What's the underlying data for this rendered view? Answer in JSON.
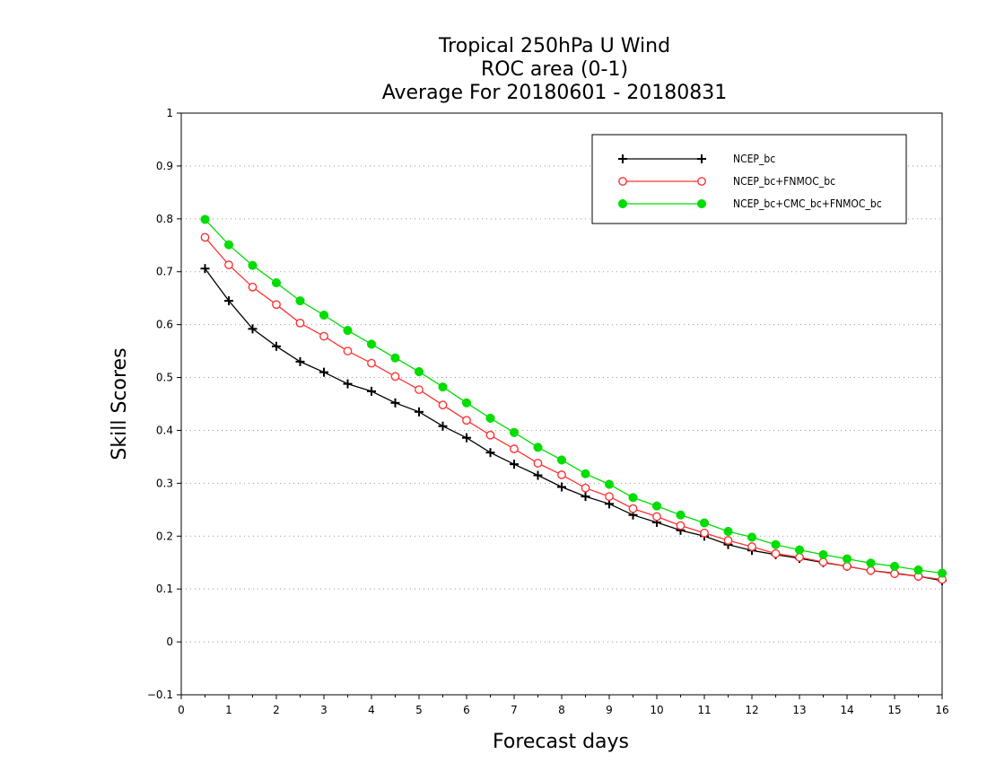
{
  "chart_data": {
    "type": "line",
    "title": [
      "Tropical 250hPa U Wind",
      "ROC area (0-1)",
      "Average For 20180601 - 20180831"
    ],
    "xlabel": "Forecast days",
    "ylabel": "Skill Scores",
    "xlim": [
      0,
      16
    ],
    "ylim": [
      -0.1,
      1
    ],
    "xticks": [
      "0",
      "1",
      "2",
      "3",
      "4",
      "5",
      "6",
      "7",
      "8",
      "9",
      "10",
      "11",
      "12",
      "13",
      "14",
      "15",
      "16"
    ],
    "yticks": [
      "−0.1",
      "0",
      "0.1",
      "0.2",
      "0.3",
      "0.4",
      "0.5",
      "0.6",
      "0.7",
      "0.8",
      "0.9",
      "1"
    ],
    "grid": "horizontal dotted",
    "legend_position": "top-right",
    "x": [
      0.5,
      1,
      1.5,
      2,
      2.5,
      3,
      3.5,
      4,
      4.5,
      5,
      5.5,
      6,
      6.5,
      7,
      7.5,
      8,
      8.5,
      9,
      9.5,
      10,
      10.5,
      11,
      11.5,
      12,
      12.5,
      13,
      13.5,
      14,
      14.5,
      15,
      15.5,
      16
    ],
    "series": [
      {
        "name": "NCEP_bc",
        "color": "#000000",
        "marker": "plus",
        "values": [
          0.706,
          0.645,
          0.592,
          0.559,
          0.53,
          0.51,
          0.488,
          0.474,
          0.452,
          0.435,
          0.408,
          0.386,
          0.358,
          0.336,
          0.315,
          0.293,
          0.275,
          0.261,
          0.24,
          0.226,
          0.211,
          0.2,
          0.184,
          0.173,
          0.165,
          0.158,
          0.15,
          0.143,
          0.135,
          0.13,
          0.124,
          0.116
        ]
      },
      {
        "name": "NCEP_bc+FNMOC_bc",
        "color": "#ff3333",
        "marker": "open-circle",
        "values": [
          0.765,
          0.713,
          0.671,
          0.638,
          0.603,
          0.578,
          0.55,
          0.527,
          0.502,
          0.477,
          0.448,
          0.419,
          0.391,
          0.365,
          0.338,
          0.316,
          0.291,
          0.275,
          0.252,
          0.237,
          0.22,
          0.206,
          0.192,
          0.18,
          0.167,
          0.16,
          0.151,
          0.143,
          0.135,
          0.129,
          0.124,
          0.118
        ]
      },
      {
        "name": "NCEP_bc+CMC_bc+FNMOC_bc",
        "color": "#00dd00",
        "marker": "filled-circle",
        "values": [
          0.799,
          0.751,
          0.712,
          0.679,
          0.645,
          0.618,
          0.589,
          0.563,
          0.537,
          0.511,
          0.482,
          0.452,
          0.423,
          0.396,
          0.368,
          0.344,
          0.318,
          0.298,
          0.273,
          0.257,
          0.24,
          0.225,
          0.209,
          0.198,
          0.184,
          0.174,
          0.165,
          0.157,
          0.149,
          0.143,
          0.136,
          0.13
        ]
      }
    ]
  }
}
